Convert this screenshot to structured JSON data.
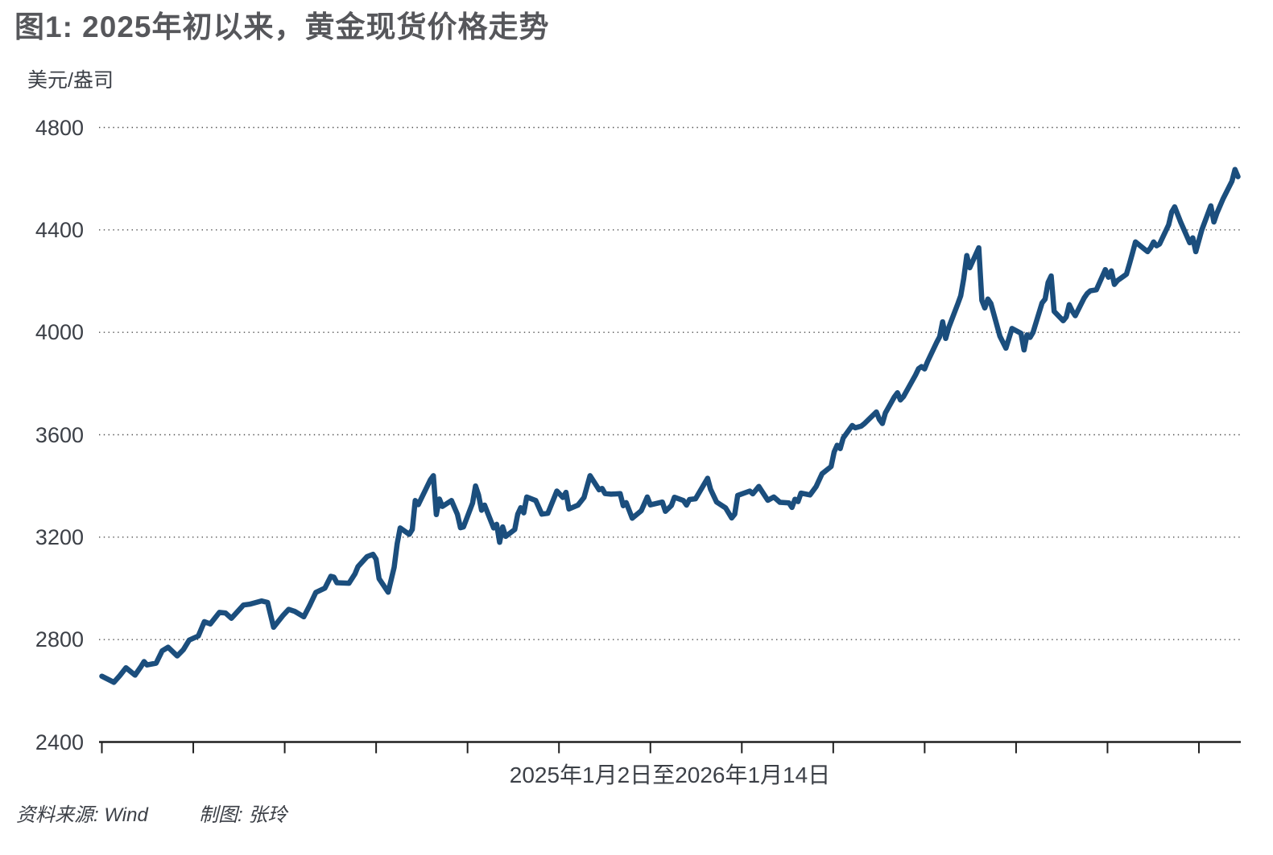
{
  "figure": {
    "title": "图1: 2025年初以来，黄金现货价格走势",
    "y_unit": "美元/盎司",
    "x_label": "2025年1月2日至2026年1月14日",
    "source_label": "资料来源: Wind",
    "credit_label": "制图: 张玲"
  },
  "style": {
    "line_color": "#1b4e7d",
    "title_color": "#56575b",
    "text_color": "#3c4047",
    "axis_color": "#202020",
    "grid_color": "#4e4e4e",
    "background": "#ffffff"
  },
  "chart_data": {
    "type": "line",
    "title": "图1: 2025年初以来，黄金现货价格走势",
    "xlabel": "2025年1月2日至2026年1月14日",
    "ylabel": "美元/盎司",
    "ylim": [
      2400,
      4800
    ],
    "y_ticks": [
      4800,
      4400,
      4000,
      3600,
      3200,
      2800,
      2400
    ],
    "x_start_date": "2025-01-02",
    "x_end_date": "2026-01-14",
    "x_total_days": 377,
    "x_month_ticks": 13,
    "grid": "horizontal dotted",
    "legend_position": "none",
    "series": [
      {
        "name": "黄金现货价格",
        "unit": "美元/盎司",
        "x_format": "days since 2025-01-02",
        "points": [
          [
            0,
            2657
          ],
          [
            4,
            2633
          ],
          [
            6,
            2660
          ],
          [
            8,
            2690
          ],
          [
            11,
            2661
          ],
          [
            13,
            2695
          ],
          [
            14,
            2714
          ],
          [
            15,
            2701
          ],
          [
            18,
            2708
          ],
          [
            20,
            2756
          ],
          [
            22,
            2770
          ],
          [
            25,
            2736
          ],
          [
            27,
            2760
          ],
          [
            29,
            2798
          ],
          [
            32,
            2814
          ],
          [
            34,
            2870
          ],
          [
            36,
            2861
          ],
          [
            39,
            2906
          ],
          [
            41,
            2904
          ],
          [
            43,
            2883
          ],
          [
            47,
            2935
          ],
          [
            49,
            2938
          ],
          [
            53,
            2951
          ],
          [
            55,
            2945
          ],
          [
            57,
            2848
          ],
          [
            60,
            2893
          ],
          [
            62,
            2918
          ],
          [
            64,
            2910
          ],
          [
            67,
            2889
          ],
          [
            69,
            2934
          ],
          [
            71,
            2984
          ],
          [
            74,
            3001
          ],
          [
            76,
            3047
          ],
          [
            77,
            3044
          ],
          [
            78,
            3022
          ],
          [
            82,
            3020
          ],
          [
            84,
            3057
          ],
          [
            85,
            3085
          ],
          [
            88,
            3124
          ],
          [
            90,
            3133
          ],
          [
            91,
            3114
          ],
          [
            92,
            3038
          ],
          [
            95,
            2985
          ],
          [
            97,
            3082
          ],
          [
            98,
            3175
          ],
          [
            99,
            3236
          ],
          [
            102,
            3211
          ],
          [
            103,
            3230
          ],
          [
            104,
            3343
          ],
          [
            105,
            3327
          ],
          [
            109,
            3424
          ],
          [
            110,
            3440
          ],
          [
            111,
            3288
          ],
          [
            112,
            3349
          ],
          [
            113,
            3320
          ],
          [
            116,
            3343
          ],
          [
            118,
            3289
          ],
          [
            119,
            3237
          ],
          [
            120,
            3240
          ],
          [
            123,
            3333
          ],
          [
            124,
            3400
          ],
          [
            125,
            3365
          ],
          [
            126,
            3305
          ],
          [
            127,
            3325
          ],
          [
            130,
            3236
          ],
          [
            131,
            3250
          ],
          [
            132,
            3180
          ],
          [
            133,
            3240
          ],
          [
            134,
            3203
          ],
          [
            137,
            3230
          ],
          [
            138,
            3290
          ],
          [
            139,
            3315
          ],
          [
            140,
            3295
          ],
          [
            141,
            3357
          ],
          [
            144,
            3343
          ],
          [
            146,
            3290
          ],
          [
            148,
            3293
          ],
          [
            151,
            3380
          ],
          [
            153,
            3355
          ],
          [
            154,
            3375
          ],
          [
            155,
            3310
          ],
          [
            158,
            3325
          ],
          [
            160,
            3355
          ],
          [
            162,
            3440
          ],
          [
            165,
            3385
          ],
          [
            166,
            3390
          ],
          [
            167,
            3370
          ],
          [
            169,
            3368
          ],
          [
            172,
            3370
          ],
          [
            173,
            3323
          ],
          [
            174,
            3335
          ],
          [
            176,
            3274
          ],
          [
            179,
            3303
          ],
          [
            181,
            3357
          ],
          [
            182,
            3326
          ],
          [
            186,
            3337
          ],
          [
            187,
            3301
          ],
          [
            189,
            3324
          ],
          [
            190,
            3356
          ],
          [
            193,
            3343
          ],
          [
            194,
            3325
          ],
          [
            195,
            3347
          ],
          [
            197,
            3350
          ],
          [
            201,
            3430
          ],
          [
            202,
            3387
          ],
          [
            204,
            3337
          ],
          [
            207,
            3314
          ],
          [
            209,
            3275
          ],
          [
            210,
            3290
          ],
          [
            211,
            3363
          ],
          [
            215,
            3380
          ],
          [
            216,
            3369
          ],
          [
            218,
            3398
          ],
          [
            221,
            3344
          ],
          [
            223,
            3357
          ],
          [
            225,
            3336
          ],
          [
            228,
            3334
          ],
          [
            229,
            3316
          ],
          [
            230,
            3348
          ],
          [
            231,
            3339
          ],
          [
            232,
            3372
          ],
          [
            235,
            3365
          ],
          [
            237,
            3397
          ],
          [
            239,
            3448
          ],
          [
            242,
            3476
          ],
          [
            243,
            3533
          ],
          [
            244,
            3559
          ],
          [
            245,
            3546
          ],
          [
            246,
            3587
          ],
          [
            249,
            3636
          ],
          [
            250,
            3627
          ],
          [
            252,
            3634
          ],
          [
            253,
            3643
          ],
          [
            257,
            3689
          ],
          [
            258,
            3660
          ],
          [
            259,
            3644
          ],
          [
            260,
            3685
          ],
          [
            263,
            3748
          ],
          [
            264,
            3764
          ],
          [
            265,
            3736
          ],
          [
            266,
            3749
          ],
          [
            270,
            3833
          ],
          [
            271,
            3858
          ],
          [
            272,
            3866
          ],
          [
            273,
            3857
          ],
          [
            274,
            3886
          ],
          [
            277,
            3960
          ],
          [
            278,
            3983
          ],
          [
            279,
            4041
          ],
          [
            280,
            3976
          ],
          [
            281,
            4018
          ],
          [
            284,
            4110
          ],
          [
            285,
            4143
          ],
          [
            286,
            4210
          ],
          [
            287,
            4300
          ],
          [
            288,
            4252
          ],
          [
            291,
            4330
          ],
          [
            292,
            4125
          ],
          [
            293,
            4095
          ],
          [
            294,
            4130
          ],
          [
            295,
            4113
          ],
          [
            298,
            3985
          ],
          [
            300,
            3938
          ],
          [
            302,
            4015
          ],
          [
            305,
            3996
          ],
          [
            306,
            3931
          ],
          [
            307,
            3990
          ],
          [
            308,
            3980
          ],
          [
            309,
            4000
          ],
          [
            312,
            4115
          ],
          [
            313,
            4130
          ],
          [
            314,
            4195
          ],
          [
            315,
            4220
          ],
          [
            316,
            4082
          ],
          [
            319,
            4045
          ],
          [
            320,
            4060
          ],
          [
            321,
            4108
          ],
          [
            322,
            4083
          ],
          [
            323,
            4065
          ],
          [
            326,
            4135
          ],
          [
            327,
            4152
          ],
          [
            328,
            4162
          ],
          [
            330,
            4166
          ],
          [
            333,
            4245
          ],
          [
            334,
            4215
          ],
          [
            335,
            4240
          ],
          [
            336,
            4187
          ],
          [
            337,
            4202
          ],
          [
            340,
            4227
          ],
          [
            341,
            4268
          ],
          [
            342,
            4310
          ],
          [
            343,
            4353
          ],
          [
            347,
            4315
          ],
          [
            348,
            4330
          ],
          [
            349,
            4353
          ],
          [
            350,
            4338
          ],
          [
            351,
            4345
          ],
          [
            354,
            4420
          ],
          [
            355,
            4470
          ],
          [
            356,
            4490
          ],
          [
            358,
            4430
          ],
          [
            361,
            4350
          ],
          [
            362,
            4369
          ],
          [
            363,
            4315
          ],
          [
            365,
            4400
          ],
          [
            368,
            4494
          ],
          [
            369,
            4431
          ],
          [
            370,
            4465
          ],
          [
            372,
            4520
          ],
          [
            375,
            4590
          ],
          [
            376,
            4636
          ],
          [
            377,
            4608
          ]
        ]
      }
    ]
  }
}
